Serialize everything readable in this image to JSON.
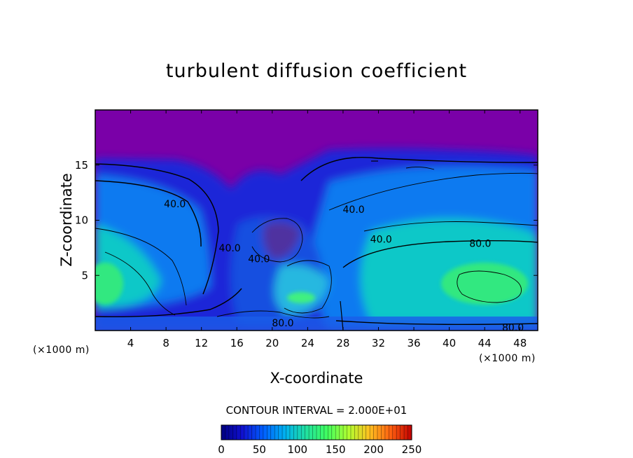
{
  "chart_data": {
    "type": "heatmap",
    "title": "turbulent diffusion coefficient",
    "xlabel": "X-coordinate",
    "ylabel": "Z-coordinate",
    "x_unit": "(×1000 m)",
    "y_unit": "(×1000 m)",
    "xlim": [
      0,
      50
    ],
    "ylim": [
      0,
      20
    ],
    "x_ticks": [
      4,
      8,
      12,
      16,
      20,
      24,
      28,
      32,
      36,
      40,
      44,
      48
    ],
    "y_ticks": [
      5,
      10,
      15
    ],
    "contour_labels": [
      {
        "text": "40.0",
        "x": 9,
        "y": 11.5
      },
      {
        "text": "40.0",
        "x": 15.2,
        "y": 7.5
      },
      {
        "text": "40.0",
        "x": 18.5,
        "y": 6.5
      },
      {
        "text": "40.0",
        "x": 29.2,
        "y": 11.0
      },
      {
        "text": "40.0",
        "x": 32.3,
        "y": 8.3
      },
      {
        "text": "80.0",
        "x": 43.5,
        "y": 7.9
      },
      {
        "text": "80.0",
        "x": 21.2,
        "y": 0.7
      },
      {
        "text": "80.0",
        "x": 47.2,
        "y": 0.3
      }
    ],
    "contour_interval_text": "CONTOUR INTERVAL = 2.000E+01",
    "colorbar": {
      "min": 0,
      "max": 250,
      "tick_labels": [
        "0",
        "50",
        "100",
        "150",
        "200",
        "250"
      ],
      "colors": [
        "#000080",
        "#1010d0",
        "#0060ff",
        "#00b0f0",
        "#20e0a0",
        "#40ff60",
        "#b0ff30",
        "#ffc020",
        "#ff6010",
        "#c00000"
      ]
    },
    "field_colors": {
      "upper_layer": "#7a00a8",
      "low": "#1a28d8",
      "mid": "#0a7af0",
      "high": "#10c8c8",
      "peak": "#30e880"
    }
  }
}
